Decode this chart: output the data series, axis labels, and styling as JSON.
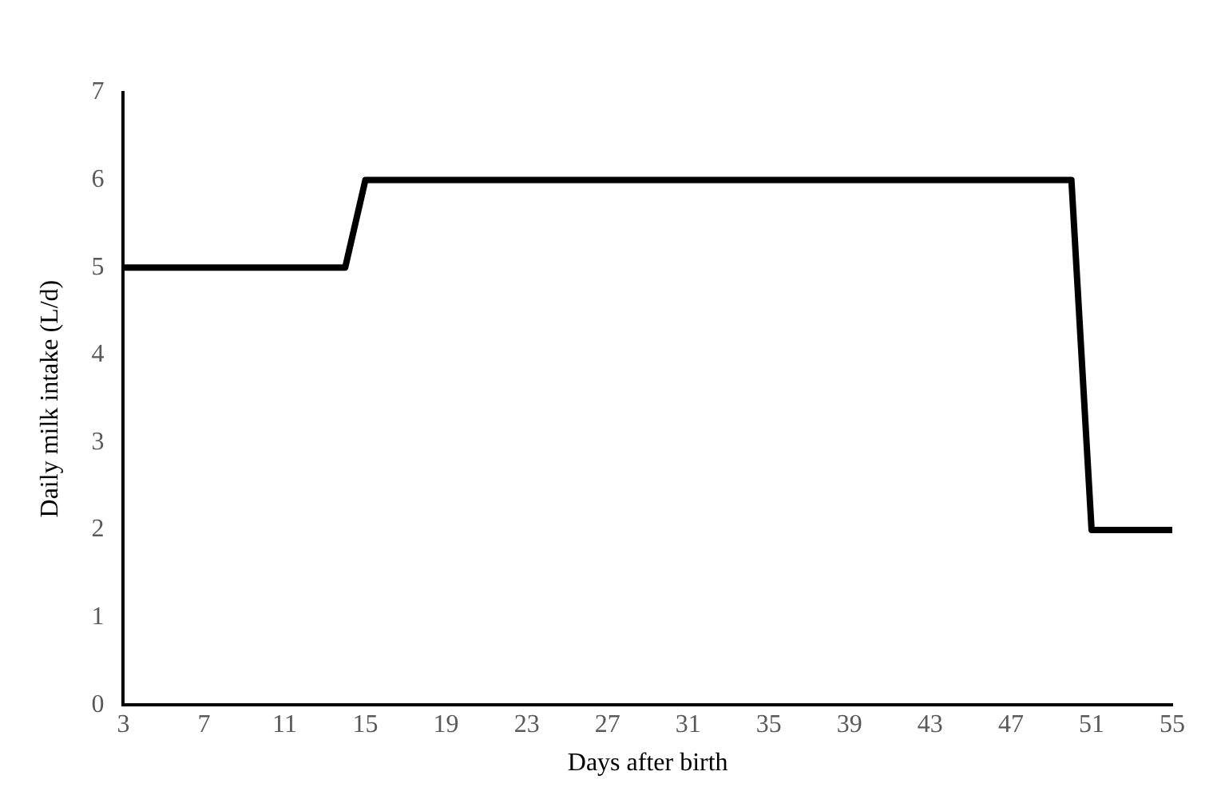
{
  "chart_data": {
    "type": "line",
    "xlabel": "Days after birth",
    "ylabel": "Daily milk intake (L/d)",
    "x": [
      3,
      14,
      15,
      50,
      51,
      55
    ],
    "series": [
      {
        "color": "#000000",
        "values": [
          5,
          5,
          6,
          6,
          2,
          2
        ]
      }
    ],
    "xlim": [
      3,
      55
    ],
    "xticks": [
      3,
      7,
      11,
      15,
      19,
      23,
      27,
      31,
      35,
      39,
      43,
      47,
      51,
      55
    ],
    "ylim": [
      0,
      7
    ],
    "yticks": [
      0,
      1,
      2,
      3,
      4,
      5,
      6,
      7
    ],
    "grid": false,
    "legend": false,
    "marker": "none",
    "line_style": "solid"
  }
}
